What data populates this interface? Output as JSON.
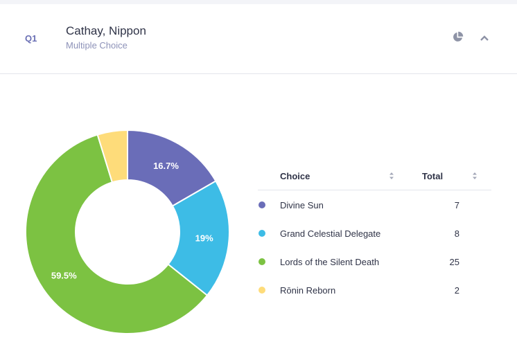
{
  "question": {
    "number": "Q1",
    "title": "Cathay, Nippon",
    "subtitle": "Multiple Choice"
  },
  "icons": {
    "chart_toggle": "pie-chart-icon",
    "collapse": "chevron-up-icon",
    "sort": "sort-icon"
  },
  "table": {
    "col_choice": "Choice",
    "col_total": "Total"
  },
  "chart_data": {
    "type": "pie",
    "donut": true,
    "categories": [
      "Divine Sun",
      "Grand Celestial Delegate",
      "Lords of the Silent Death",
      "Rōnin Reborn"
    ],
    "values": [
      7,
      8,
      25,
      2
    ],
    "colors": [
      "#6a6db8",
      "#3dbce6",
      "#7cc242",
      "#fedc7a"
    ],
    "percent_labels": [
      "16.7%",
      "19%",
      "59.5%",
      ""
    ]
  }
}
